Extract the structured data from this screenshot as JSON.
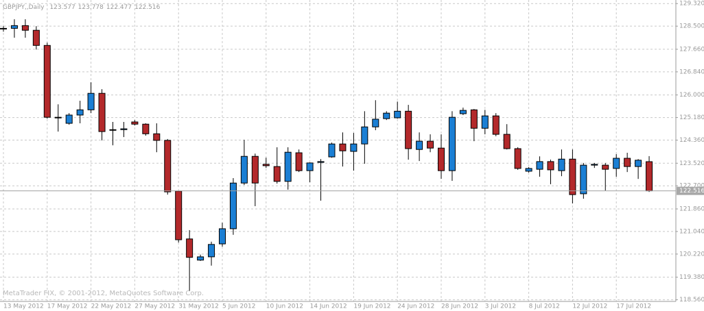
{
  "chart_data": {
    "type": "candlestick",
    "title": "GBPJPY,,Daily",
    "watermark": "MetaTrader FIX, © 2001-2012, MetaQuotes Software Corp.",
    "categories": [
      "13 May 2012",
      null,
      null,
      null,
      "17 May 2012",
      null,
      null,
      null,
      "22 May 2012",
      null,
      null,
      null,
      "27 May 2012",
      null,
      null,
      null,
      "31 May 2012",
      null,
      null,
      null,
      "5 Jun 2012",
      null,
      null,
      null,
      "10 Jun 2012",
      null,
      null,
      null,
      "14 Jun 2012",
      null,
      null,
      null,
      "19 Jun 2012",
      null,
      null,
      null,
      "24 Jun 2012",
      null,
      null,
      null,
      "28 Jun 2012",
      null,
      null,
      null,
      "3 Jul 2012",
      null,
      null,
      null,
      "8 Jul 2012",
      null,
      null,
      null,
      "12 Jul 2012",
      null,
      null,
      null,
      "17 Jul 2012",
      null,
      null,
      null
    ],
    "open": [
      128.4,
      128.42,
      128.52,
      128.35,
      127.8,
      125.19,
      124.97,
      125.27,
      125.46,
      126.06,
      124.72,
      124.74,
      125.02,
      124.94,
      124.59,
      124.35,
      122.51,
      120.77,
      120.0,
      120.12,
      120.59,
      121.14,
      122.8,
      123.77,
      123.48,
      123.4,
      122.86,
      123.9,
      123.25,
      123.55,
      123.75,
      124.22,
      123.95,
      124.22,
      124.84,
      125.14,
      125.17,
      125.41,
      124.02,
      124.32,
      124.07,
      123.25,
      125.32,
      125.46,
      124.79,
      125.24,
      124.57,
      124.05,
      123.23,
      123.3,
      123.58,
      123.25,
      123.67,
      122.41,
      123.45,
      123.45,
      123.33,
      123.7,
      123.4,
      123.577
    ],
    "high": [
      128.5,
      128.75,
      128.75,
      128.5,
      127.9,
      125.66,
      125.34,
      125.79,
      126.46,
      126.21,
      125.02,
      125.02,
      125.09,
      124.97,
      124.97,
      124.4,
      122.53,
      121.09,
      120.2,
      120.67,
      121.36,
      122.98,
      124.37,
      123.87,
      123.72,
      124.1,
      124.1,
      124.02,
      123.55,
      123.67,
      124.27,
      124.64,
      124.62,
      125.41,
      125.81,
      125.41,
      125.76,
      125.64,
      124.64,
      124.57,
      124.57,
      125.41,
      125.54,
      125.49,
      125.46,
      125.34,
      124.94,
      124.1,
      123.38,
      123.77,
      123.65,
      124.02,
      124.02,
      123.53,
      123.53,
      123.53,
      123.85,
      123.9,
      123.67,
      123.778
    ],
    "low": [
      128.3,
      128.08,
      128.08,
      127.65,
      125.14,
      124.67,
      124.92,
      124.97,
      125.34,
      124.35,
      124.17,
      124.47,
      124.89,
      124.52,
      123.92,
      122.38,
      120.64,
      118.88,
      119.97,
      119.8,
      120.49,
      120.92,
      122.73,
      121.96,
      123.35,
      122.78,
      122.56,
      123.2,
      122.83,
      122.16,
      123.72,
      123.4,
      123.25,
      123.5,
      124.72,
      125.09,
      125.14,
      123.65,
      123.6,
      123.92,
      122.95,
      122.88,
      125.27,
      124.32,
      124.57,
      124.5,
      124.02,
      123.28,
      123.18,
      123.03,
      122.76,
      123.05,
      122.06,
      122.23,
      123.35,
      122.53,
      123.03,
      123.2,
      122.95,
      122.477
    ],
    "close": [
      128.42,
      128.52,
      128.35,
      127.8,
      125.19,
      125.17,
      125.27,
      125.46,
      126.06,
      124.67,
      124.74,
      124.77,
      124.94,
      124.59,
      124.35,
      122.48,
      120.74,
      120.1,
      120.12,
      120.57,
      121.14,
      122.8,
      123.77,
      122.8,
      123.43,
      122.86,
      123.92,
      123.25,
      123.53,
      123.58,
      124.22,
      123.97,
      124.22,
      124.84,
      125.12,
      125.34,
      125.41,
      124.05,
      124.32,
      124.07,
      123.25,
      125.19,
      125.44,
      124.79,
      125.24,
      124.57,
      124.05,
      123.33,
      123.33,
      123.58,
      123.28,
      123.67,
      122.38,
      123.45,
      123.48,
      123.3,
      123.7,
      123.4,
      123.63,
      122.516
    ],
    "up_color": "#1b7fd4",
    "down_color": "#b3292b",
    "ylim": [
      118.5,
      129.45
    ],
    "yticks": [
      {
        "value": 129.32,
        "label": "129.320"
      },
      {
        "value": 128.5,
        "label": "128.500"
      },
      {
        "value": 127.66,
        "label": "127.660"
      },
      {
        "value": 126.84,
        "label": "126.840"
      },
      {
        "value": 126,
        "label": "126.000"
      },
      {
        "value": 125.18,
        "label": "125.180"
      },
      {
        "value": 124.36,
        "label": "124.360"
      },
      {
        "value": 123.52,
        "label": "123.520"
      },
      {
        "value": 122.7,
        "label": "122.700"
      },
      {
        "value": 121.86,
        "label": "121.860"
      },
      {
        "value": 121.04,
        "label": "121.040"
      },
      {
        "value": 120.22,
        "label": "120.220"
      },
      {
        "value": 119.38,
        "label": "119.380"
      },
      {
        "value": 118.56,
        "label": "118.560"
      }
    ],
    "grid": true
  }
}
